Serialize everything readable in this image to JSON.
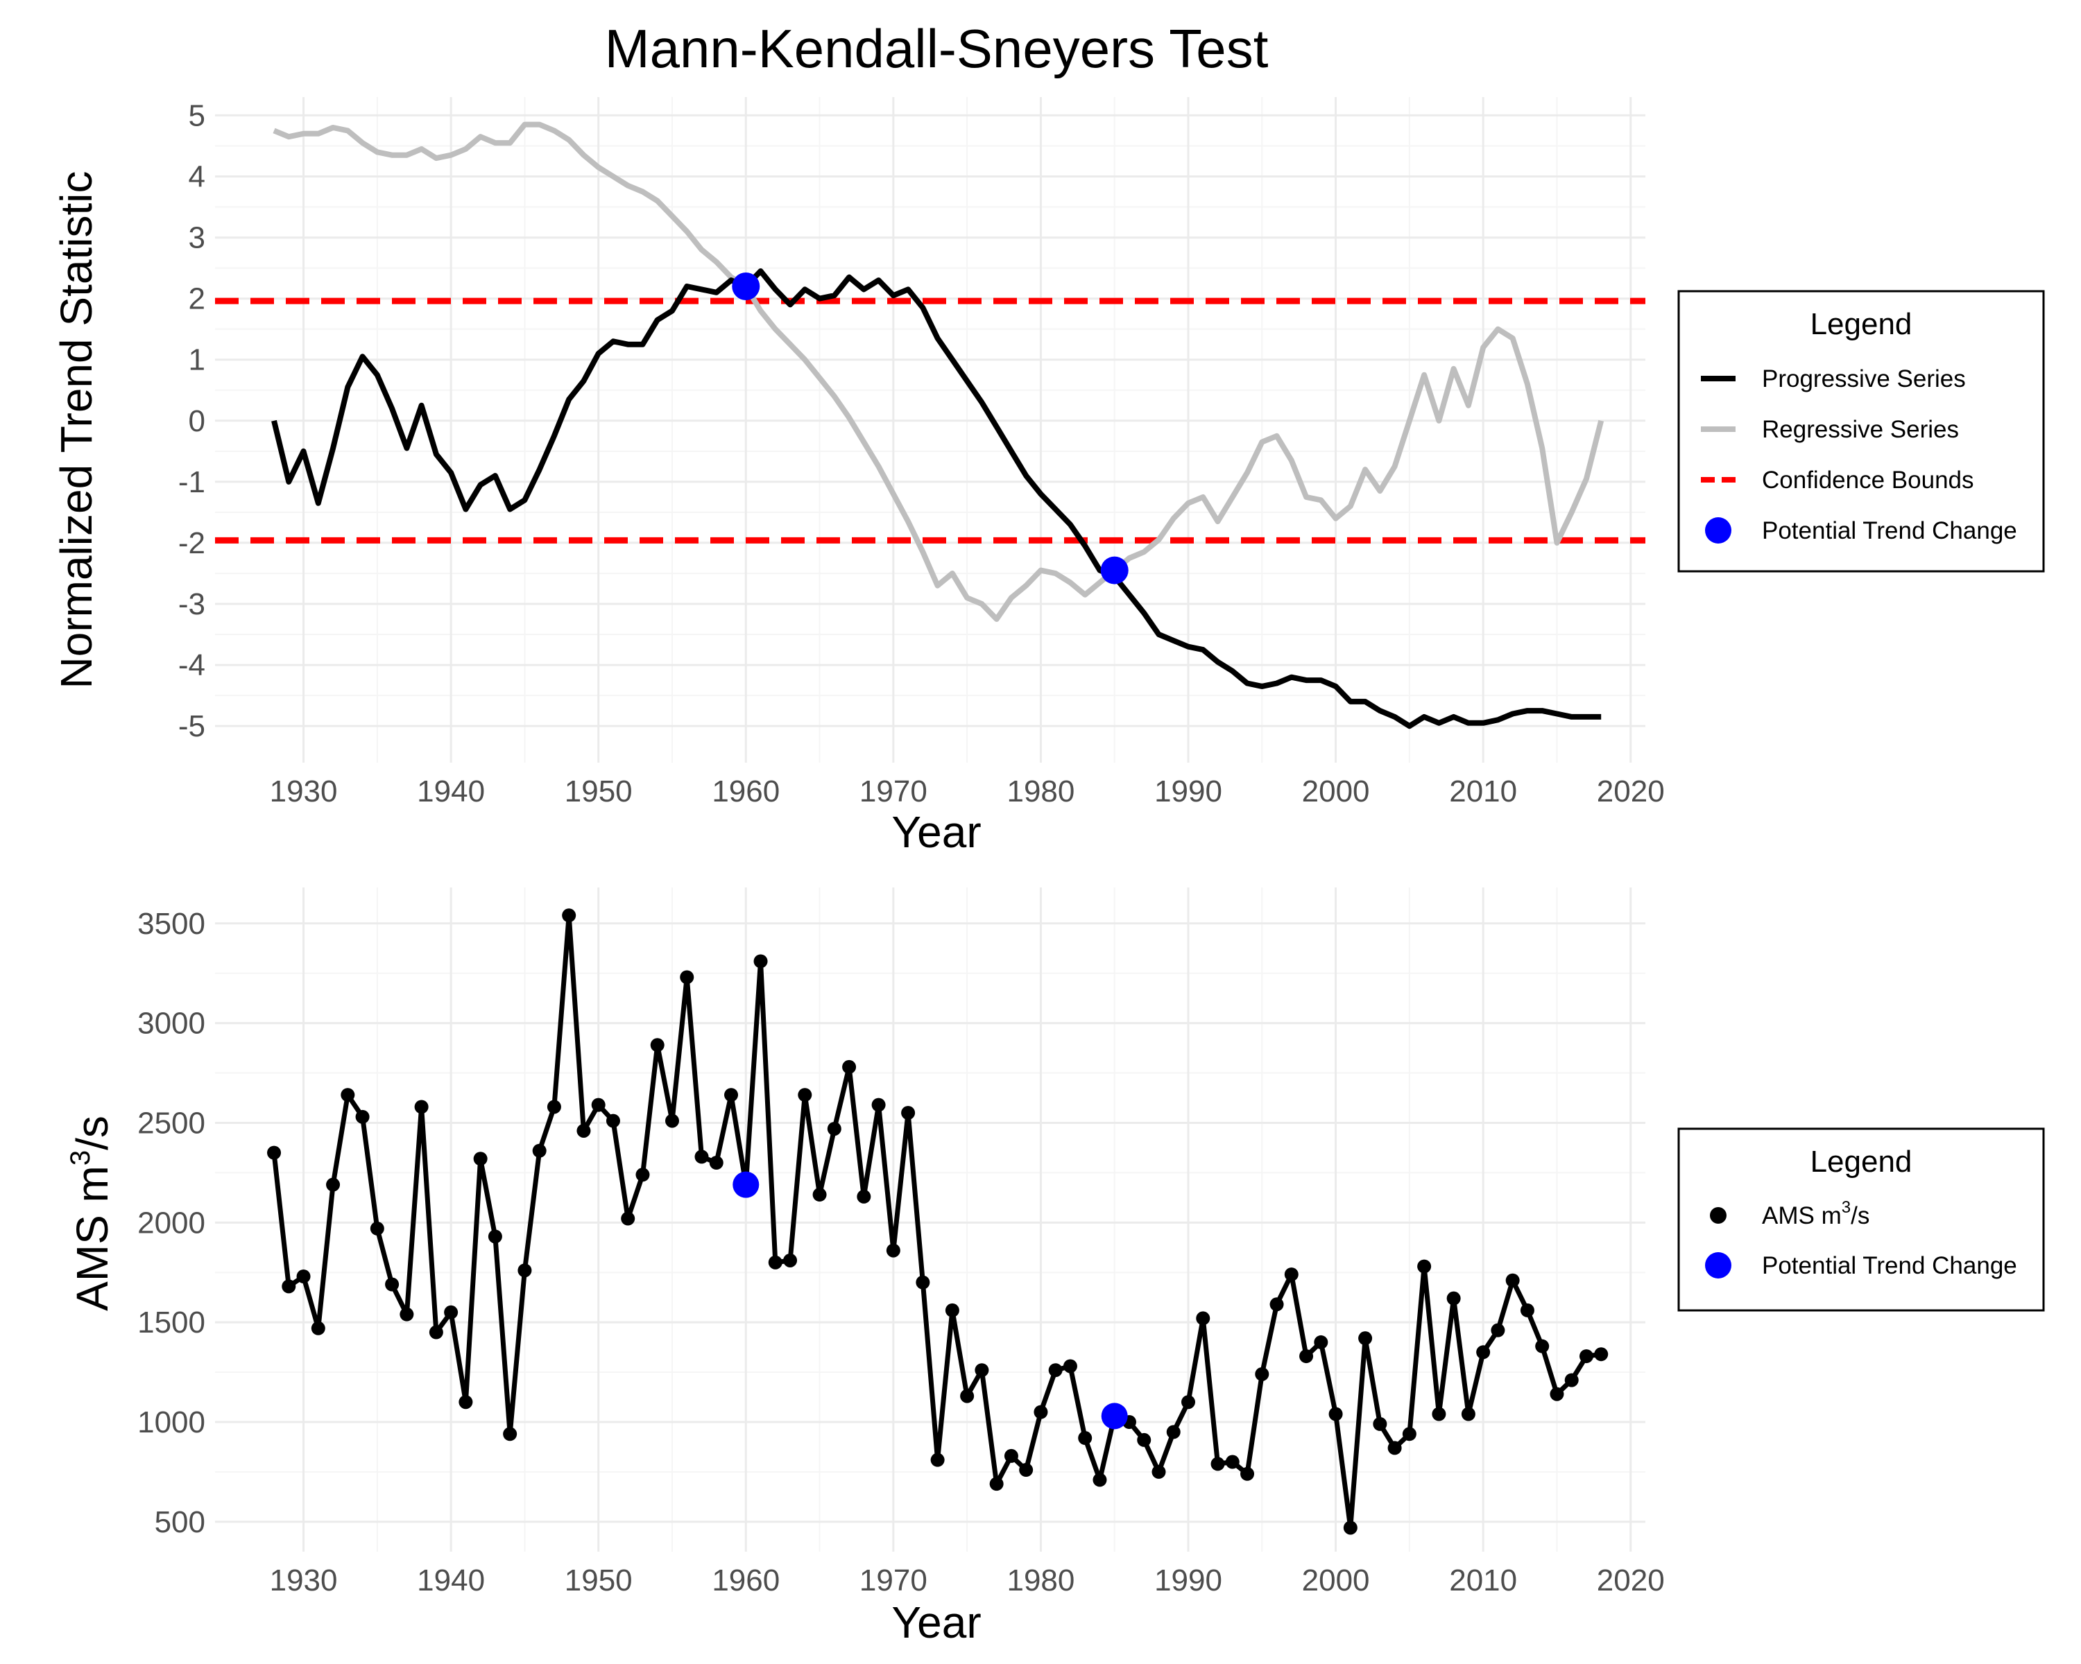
{
  "title": "Mann-Kendall-Sneyers Test",
  "chart_data": [
    {
      "type": "line",
      "title": "Mann-Kendall-Sneyers Test",
      "xlabel": "Year",
      "ylabel": "Normalized Trend Statistic",
      "xlim": [
        1924,
        2021
      ],
      "ylim": [
        -5.6,
        5.3
      ],
      "x_ticks": [
        "1930",
        "1940",
        "1950",
        "1960",
        "1970",
        "1980",
        "1990",
        "2000",
        "2010",
        "2020"
      ],
      "y_ticks": [
        "-5",
        "-4",
        "-3",
        "-2",
        "-1",
        "0",
        "1",
        "2",
        "3",
        "4",
        "5"
      ],
      "grid": true,
      "legend_position": "right",
      "legend": {
        "title": "Legend",
        "entries": [
          "Progressive Series",
          "Regressive Series",
          "Confidence Bounds",
          "Potential Trend Change"
        ]
      },
      "colors": {
        "progressive": "#000000",
        "regressive": "#bebebe",
        "bounds": "#ff0000",
        "change": "#0000ff"
      },
      "x": [
        1928,
        1929,
        1930,
        1931,
        1932,
        1933,
        1934,
        1935,
        1936,
        1937,
        1938,
        1939,
        1940,
        1941,
        1942,
        1943,
        1944,
        1945,
        1946,
        1947,
        1948,
        1949,
        1950,
        1951,
        1952,
        1953,
        1954,
        1955,
        1956,
        1957,
        1958,
        1959,
        1960,
        1961,
        1962,
        1963,
        1964,
        1965,
        1966,
        1967,
        1968,
        1969,
        1970,
        1971,
        1972,
        1973,
        1974,
        1975,
        1976,
        1977,
        1978,
        1979,
        1980,
        1981,
        1982,
        1983,
        1984,
        1985,
        1986,
        1987,
        1988,
        1989,
        1990,
        1991,
        1992,
        1993,
        1994,
        1995,
        1996,
        1997,
        1998,
        1999,
        2000,
        2001,
        2002,
        2003,
        2004,
        2005,
        2006,
        2007,
        2008,
        2009,
        2010,
        2011,
        2012,
        2013,
        2014,
        2015,
        2016,
        2017,
        2018
      ],
      "series": [
        {
          "name": "Progressive Series",
          "values": [
            0.0,
            -1.0,
            -0.5,
            -1.35,
            -0.45,
            0.55,
            1.05,
            0.75,
            0.2,
            -0.45,
            0.25,
            -0.55,
            -0.85,
            -1.45,
            -1.05,
            -0.9,
            -1.45,
            -1.3,
            -0.8,
            -0.25,
            0.35,
            0.65,
            1.1,
            1.3,
            1.25,
            1.25,
            1.65,
            1.8,
            2.2,
            2.15,
            2.1,
            2.3,
            2.2,
            2.45,
            2.15,
            1.9,
            2.15,
            2.0,
            2.05,
            2.35,
            2.15,
            2.3,
            2.05,
            2.15,
            1.85,
            1.35,
            1.0,
            0.65,
            0.3,
            -0.1,
            -0.5,
            -0.9,
            -1.2,
            -1.45,
            -1.7,
            -2.05,
            -2.45,
            -2.55,
            -2.85,
            -3.15,
            -3.5,
            -3.6,
            -3.7,
            -3.75,
            -3.95,
            -4.1,
            -4.3,
            -4.35,
            -4.3,
            -4.2,
            -4.25,
            -4.25,
            -4.35,
            -4.6,
            -4.6,
            -4.75,
            -4.85,
            -5.0,
            -4.85,
            -4.95,
            -4.85,
            -4.95,
            -4.95,
            -4.9,
            -4.8,
            -4.75,
            -4.75,
            -4.8,
            -4.85,
            -4.85,
            -4.85
          ]
        },
        {
          "name": "Regressive Series",
          "values": [
            4.75,
            4.65,
            4.7,
            4.7,
            4.8,
            4.75,
            4.55,
            4.4,
            4.35,
            4.35,
            4.45,
            4.3,
            4.35,
            4.45,
            4.65,
            4.55,
            4.55,
            4.85,
            4.85,
            4.75,
            4.6,
            4.35,
            4.15,
            4.0,
            3.85,
            3.75,
            3.6,
            3.35,
            3.1,
            2.8,
            2.6,
            2.35,
            2.2,
            1.8,
            1.5,
            1.25,
            1.0,
            0.7,
            0.4,
            0.05,
            -0.35,
            -0.75,
            -1.2,
            -1.65,
            -2.15,
            -2.7,
            -2.5,
            -2.9,
            -3.0,
            -3.25,
            -2.9,
            -2.7,
            -2.45,
            -2.5,
            -2.65,
            -2.85,
            -2.65,
            -2.45,
            -2.25,
            -2.15,
            -1.95,
            -1.6,
            -1.35,
            -1.25,
            -1.65,
            -1.25,
            -0.85,
            -0.35,
            -0.25,
            -0.65,
            -1.25,
            -1.3,
            -1.6,
            -1.4,
            -0.8,
            -1.15,
            -0.75,
            0.0,
            0.75,
            0.0,
            0.85,
            0.25,
            1.2,
            1.5,
            1.35,
            0.6,
            -0.45,
            -2.0,
            -1.5,
            -0.95,
            0.0
          ]
        }
      ],
      "confidence_bounds": [
        1.96,
        -1.96
      ],
      "trend_change_points": [
        {
          "x": 1960,
          "y": 2.2
        },
        {
          "x": 1985,
          "y": -2.45
        }
      ]
    },
    {
      "type": "line",
      "xlabel": "Year",
      "ylabel_main": "AMS m",
      "ylabel_sup": "3",
      "ylabel_tail": "/s",
      "xlim": [
        1924,
        2021
      ],
      "ylim": [
        350,
        3680
      ],
      "x_ticks": [
        "1930",
        "1940",
        "1950",
        "1960",
        "1970",
        "1980",
        "1990",
        "2000",
        "2010",
        "2020"
      ],
      "y_ticks": [
        "500",
        "1000",
        "1500",
        "2000",
        "2500",
        "3000",
        "3500"
      ],
      "grid": true,
      "legend_position": "right",
      "legend": {
        "title": "Legend",
        "entries": [
          {
            "main": "AMS m",
            "sup": "3",
            "tail": "/s"
          },
          {
            "main": "Potential Trend Change",
            "sup": "",
            "tail": ""
          }
        ]
      },
      "colors": {
        "series": "#000000",
        "change": "#0000ff"
      },
      "x": [
        1928,
        1929,
        1930,
        1931,
        1932,
        1933,
        1934,
        1935,
        1936,
        1937,
        1938,
        1939,
        1940,
        1941,
        1942,
        1943,
        1944,
        1945,
        1946,
        1947,
        1948,
        1949,
        1950,
        1951,
        1952,
        1953,
        1954,
        1955,
        1956,
        1957,
        1958,
        1959,
        1960,
        1961,
        1962,
        1963,
        1964,
        1965,
        1966,
        1967,
        1968,
        1969,
        1970,
        1971,
        1972,
        1973,
        1974,
        1975,
        1976,
        1977,
        1978,
        1979,
        1980,
        1981,
        1982,
        1983,
        1984,
        1985,
        1986,
        1987,
        1988,
        1989,
        1990,
        1991,
        1992,
        1993,
        1994,
        1995,
        1996,
        1997,
        1998,
        1999,
        2000,
        2001,
        2002,
        2003,
        2004,
        2005,
        2006,
        2007,
        2008,
        2009,
        2010,
        2011,
        2012,
        2013,
        2014,
        2015,
        2016,
        2017,
        2018
      ],
      "series": [
        {
          "name": "AMS m³/s",
          "values": [
            2350,
            1680,
            1730,
            1470,
            2190,
            2640,
            2530,
            1970,
            1690,
            1540,
            2580,
            1450,
            1550,
            1100,
            2320,
            1930,
            940,
            1760,
            2360,
            2580,
            3540,
            2460,
            2590,
            2510,
            2020,
            2240,
            2890,
            2510,
            3230,
            2330,
            2300,
            2640,
            2190,
            3310,
            1800,
            1810,
            2640,
            2140,
            2470,
            2780,
            2130,
            2590,
            1860,
            2550,
            1700,
            810,
            1560,
            1130,
            1260,
            690,
            830,
            760,
            1050,
            1260,
            1280,
            920,
            710,
            1030,
            1000,
            910,
            750,
            950,
            1100,
            1520,
            790,
            800,
            740,
            1240,
            1590,
            1740,
            1330,
            1400,
            1040,
            470,
            1420,
            990,
            870,
            940,
            1780,
            1040,
            1620,
            1040,
            1350,
            1460,
            1710,
            1560,
            1380,
            1140,
            1210,
            1330,
            1340
          ]
        }
      ],
      "trend_change_points": [
        {
          "x": 1960,
          "y": 2190
        },
        {
          "x": 1985,
          "y": 1030
        }
      ]
    }
  ]
}
